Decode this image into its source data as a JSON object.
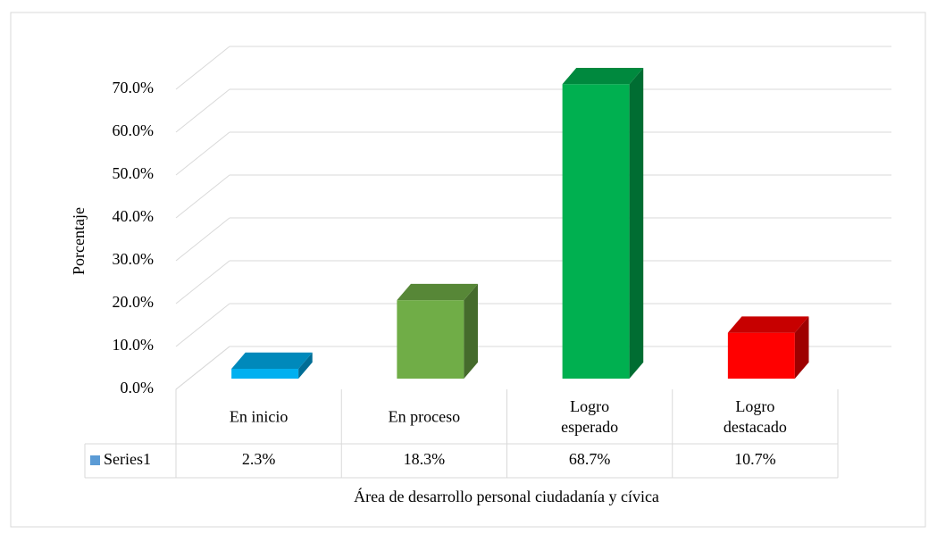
{
  "chart_data": {
    "type": "bar3d",
    "y_label": "Porcentaje",
    "x_label": "Área de desarrollo personal ciudadanía y cívica",
    "categories": [
      "En inicio",
      "En proceso",
      "Logro esperado",
      "Logro destacado"
    ],
    "series": [
      {
        "name": "Series1",
        "color": "#5b9bd5",
        "values": [
          2.3,
          18.3,
          68.7,
          10.7
        ],
        "value_labels": [
          "2.3%",
          "18.3%",
          "68.7%",
          "10.7%"
        ]
      }
    ],
    "colors": [
      "#00b0f0",
      "#70ad47",
      "#00b050",
      "#ff0000"
    ],
    "ylim": [
      0,
      70
    ],
    "yticks": [
      {
        "value": 0,
        "label": "0.0%"
      },
      {
        "value": 10,
        "label": "10.0%"
      },
      {
        "value": 20,
        "label": "20.0%"
      },
      {
        "value": 30,
        "label": "30.0%"
      },
      {
        "value": 40,
        "label": "40.0%"
      },
      {
        "value": 50,
        "label": "50.0%"
      },
      {
        "value": 60,
        "label": "60.0%"
      },
      {
        "value": 70,
        "label": "70.0%"
      }
    ],
    "grid": true
  }
}
